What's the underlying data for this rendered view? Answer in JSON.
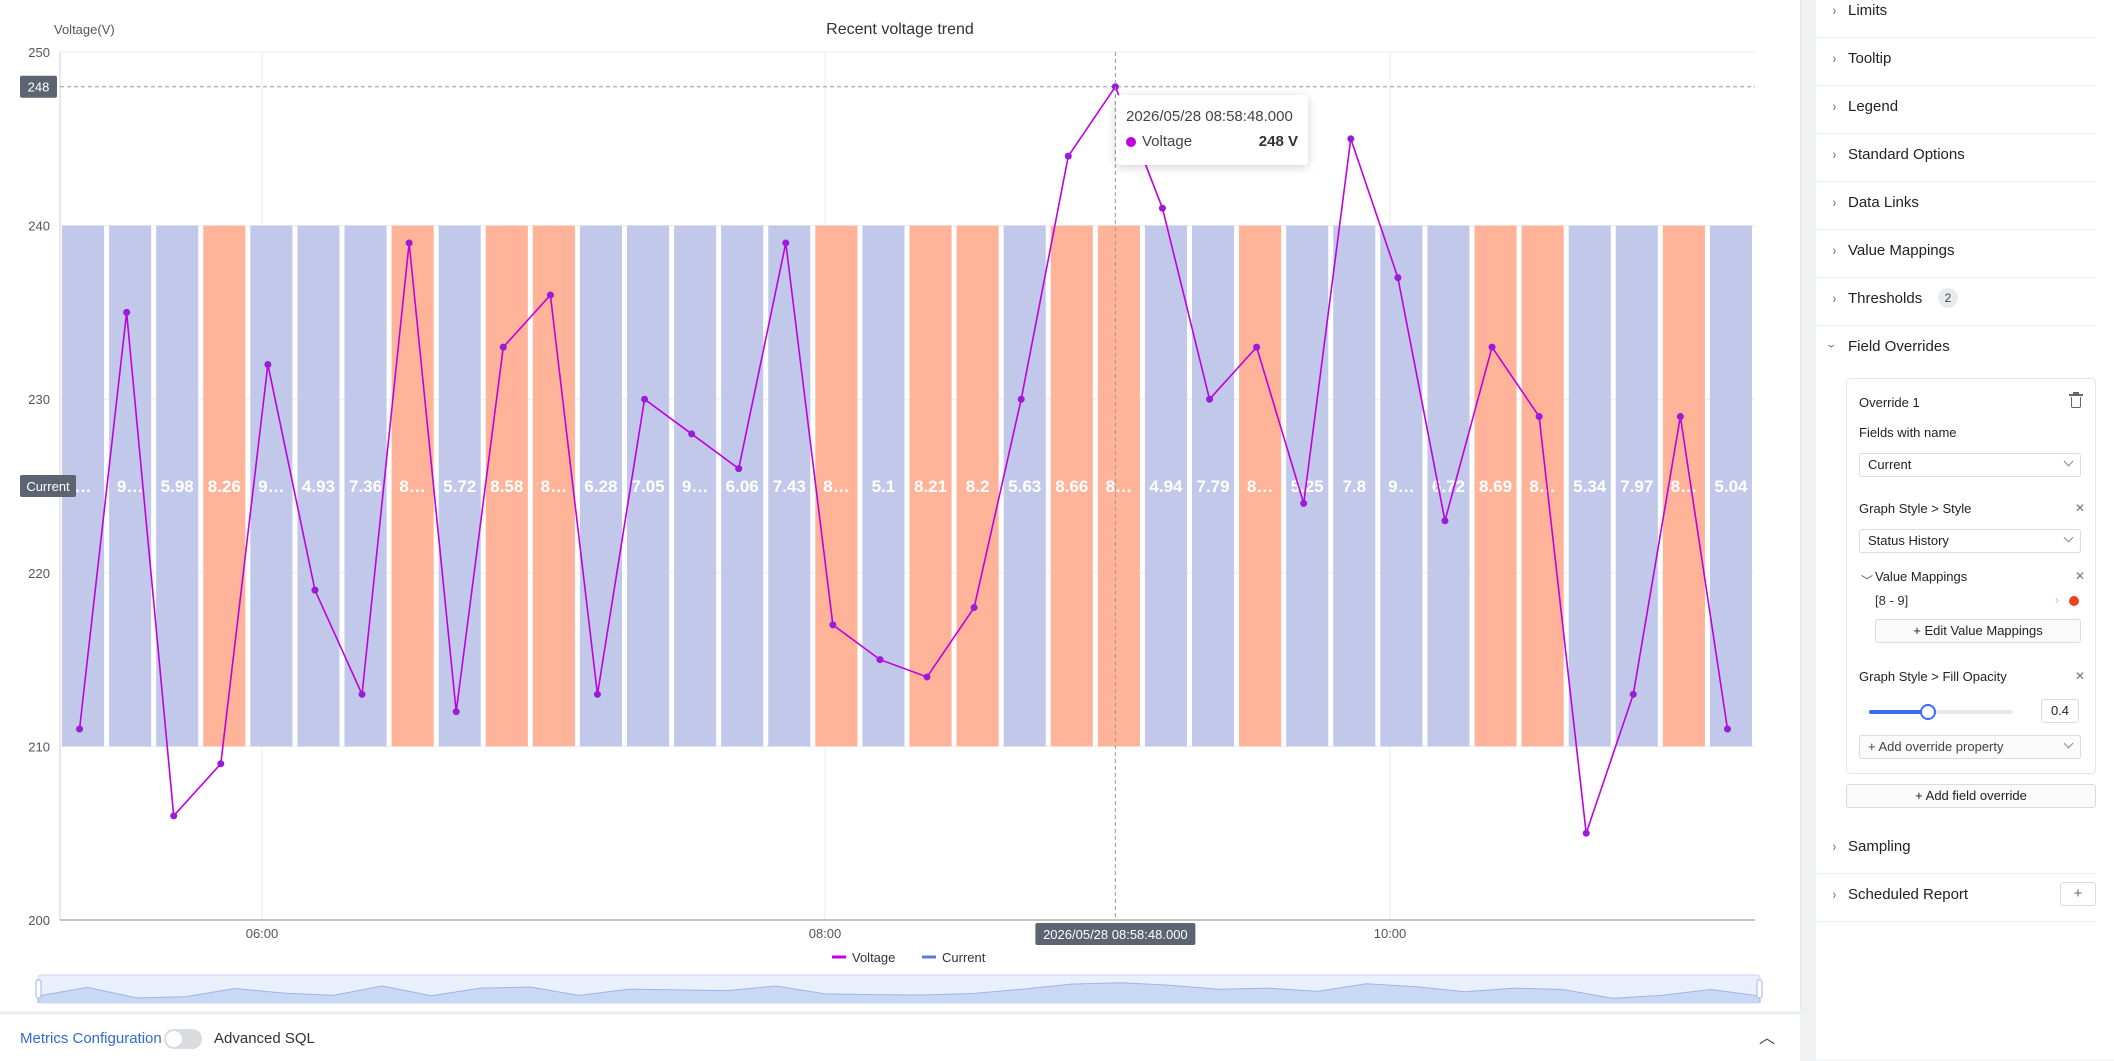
{
  "chart": {
    "title": "Recent voltage trend",
    "y_axis_title": "Voltage(V)",
    "threshold_label": "248",
    "current_label": "Current",
    "crosshair_time": "2026/05/28 08:58:48.000",
    "legend": [
      {
        "name": "Voltage",
        "color": "#c000e0"
      },
      {
        "name": "Current",
        "color": "#5a78dc"
      }
    ]
  },
  "chart_data": {
    "type": "line",
    "title": "Recent voltage trend",
    "ylabel": "Voltage(V)",
    "ylim": [
      200,
      250
    ],
    "y_ticks": [
      200,
      210,
      220,
      230,
      240,
      250
    ],
    "x_ticks": [
      "06:00",
      "08:00",
      "10:00"
    ],
    "threshold_line": 248,
    "series": [
      {
        "name": "Voltage",
        "color": "#c000e0",
        "values": [
          211,
          235,
          206,
          209,
          232,
          219,
          213,
          239,
          212,
          233,
          236,
          213,
          230,
          228,
          226,
          239,
          217,
          215,
          214,
          218,
          230,
          244,
          248,
          241,
          230,
          233,
          224,
          245,
          237,
          223,
          233,
          229,
          205,
          213,
          229,
          211
        ]
      },
      {
        "name": "Current",
        "type": "status-history",
        "band": [
          210,
          240
        ],
        "value_mapping": {
          "range": [
            8,
            9
          ],
          "color": "#ffb399"
        },
        "default_color": "#c1c8e9",
        "labels": [
          "…",
          "9…",
          "5.98",
          "8.26",
          "9…",
          "4.93",
          "7.36",
          "8…",
          "5.72",
          "8.58",
          "8…",
          "6.28",
          "7.05",
          "9…",
          "6.06",
          "7.43",
          "8…",
          "5.1",
          "8.21",
          "8.2",
          "5.63",
          "8.66",
          "8…",
          "4.94",
          "7.79",
          "8…",
          "5.25",
          "7.8",
          "9…",
          "6.72",
          "8.69",
          "8…",
          "5.34",
          "7.97",
          "8…",
          "5.04"
        ],
        "mapped": [
          false,
          false,
          false,
          true,
          false,
          false,
          false,
          true,
          false,
          true,
          true,
          false,
          false,
          false,
          false,
          false,
          true,
          false,
          true,
          true,
          false,
          true,
          true,
          false,
          false,
          true,
          false,
          false,
          false,
          false,
          true,
          true,
          false,
          false,
          true,
          false
        ]
      }
    ],
    "legend_position": "bottom-center",
    "grid": true
  },
  "tooltip": {
    "time": "2026/05/28 08:58:48.000",
    "series": "Voltage",
    "value": "248 V"
  },
  "bottom_bar": {
    "metrics_label": "Metrics Configuration",
    "advanced_sql_label": "Advanced SQL",
    "collapse_icon": "chevron-up-icon"
  },
  "settings": {
    "sections": [
      "Limits",
      "Tooltip",
      "Legend",
      "Standard Options",
      "Data Links",
      "Value Mappings",
      "Thresholds",
      "Field Overrides"
    ],
    "thresholds_badge": "2",
    "lower_sections": [
      "Sampling",
      "Scheduled Report"
    ],
    "override": {
      "title": "Override 1",
      "matcher_label": "Fields with name",
      "matcher_value": "Current",
      "style_label": "Graph Style > Style",
      "style_value": "Status History",
      "vm_label": "Value Mappings",
      "vm_range": "[8 - 9]",
      "vm_color": "#e8451e",
      "edit_vm_label": "+ Edit Value Mappings",
      "opacity_label": "Graph Style > Fill Opacity",
      "opacity_value": "0.4",
      "add_property_label": "+ Add override property"
    },
    "add_field_override_label": "+ Add field override"
  }
}
